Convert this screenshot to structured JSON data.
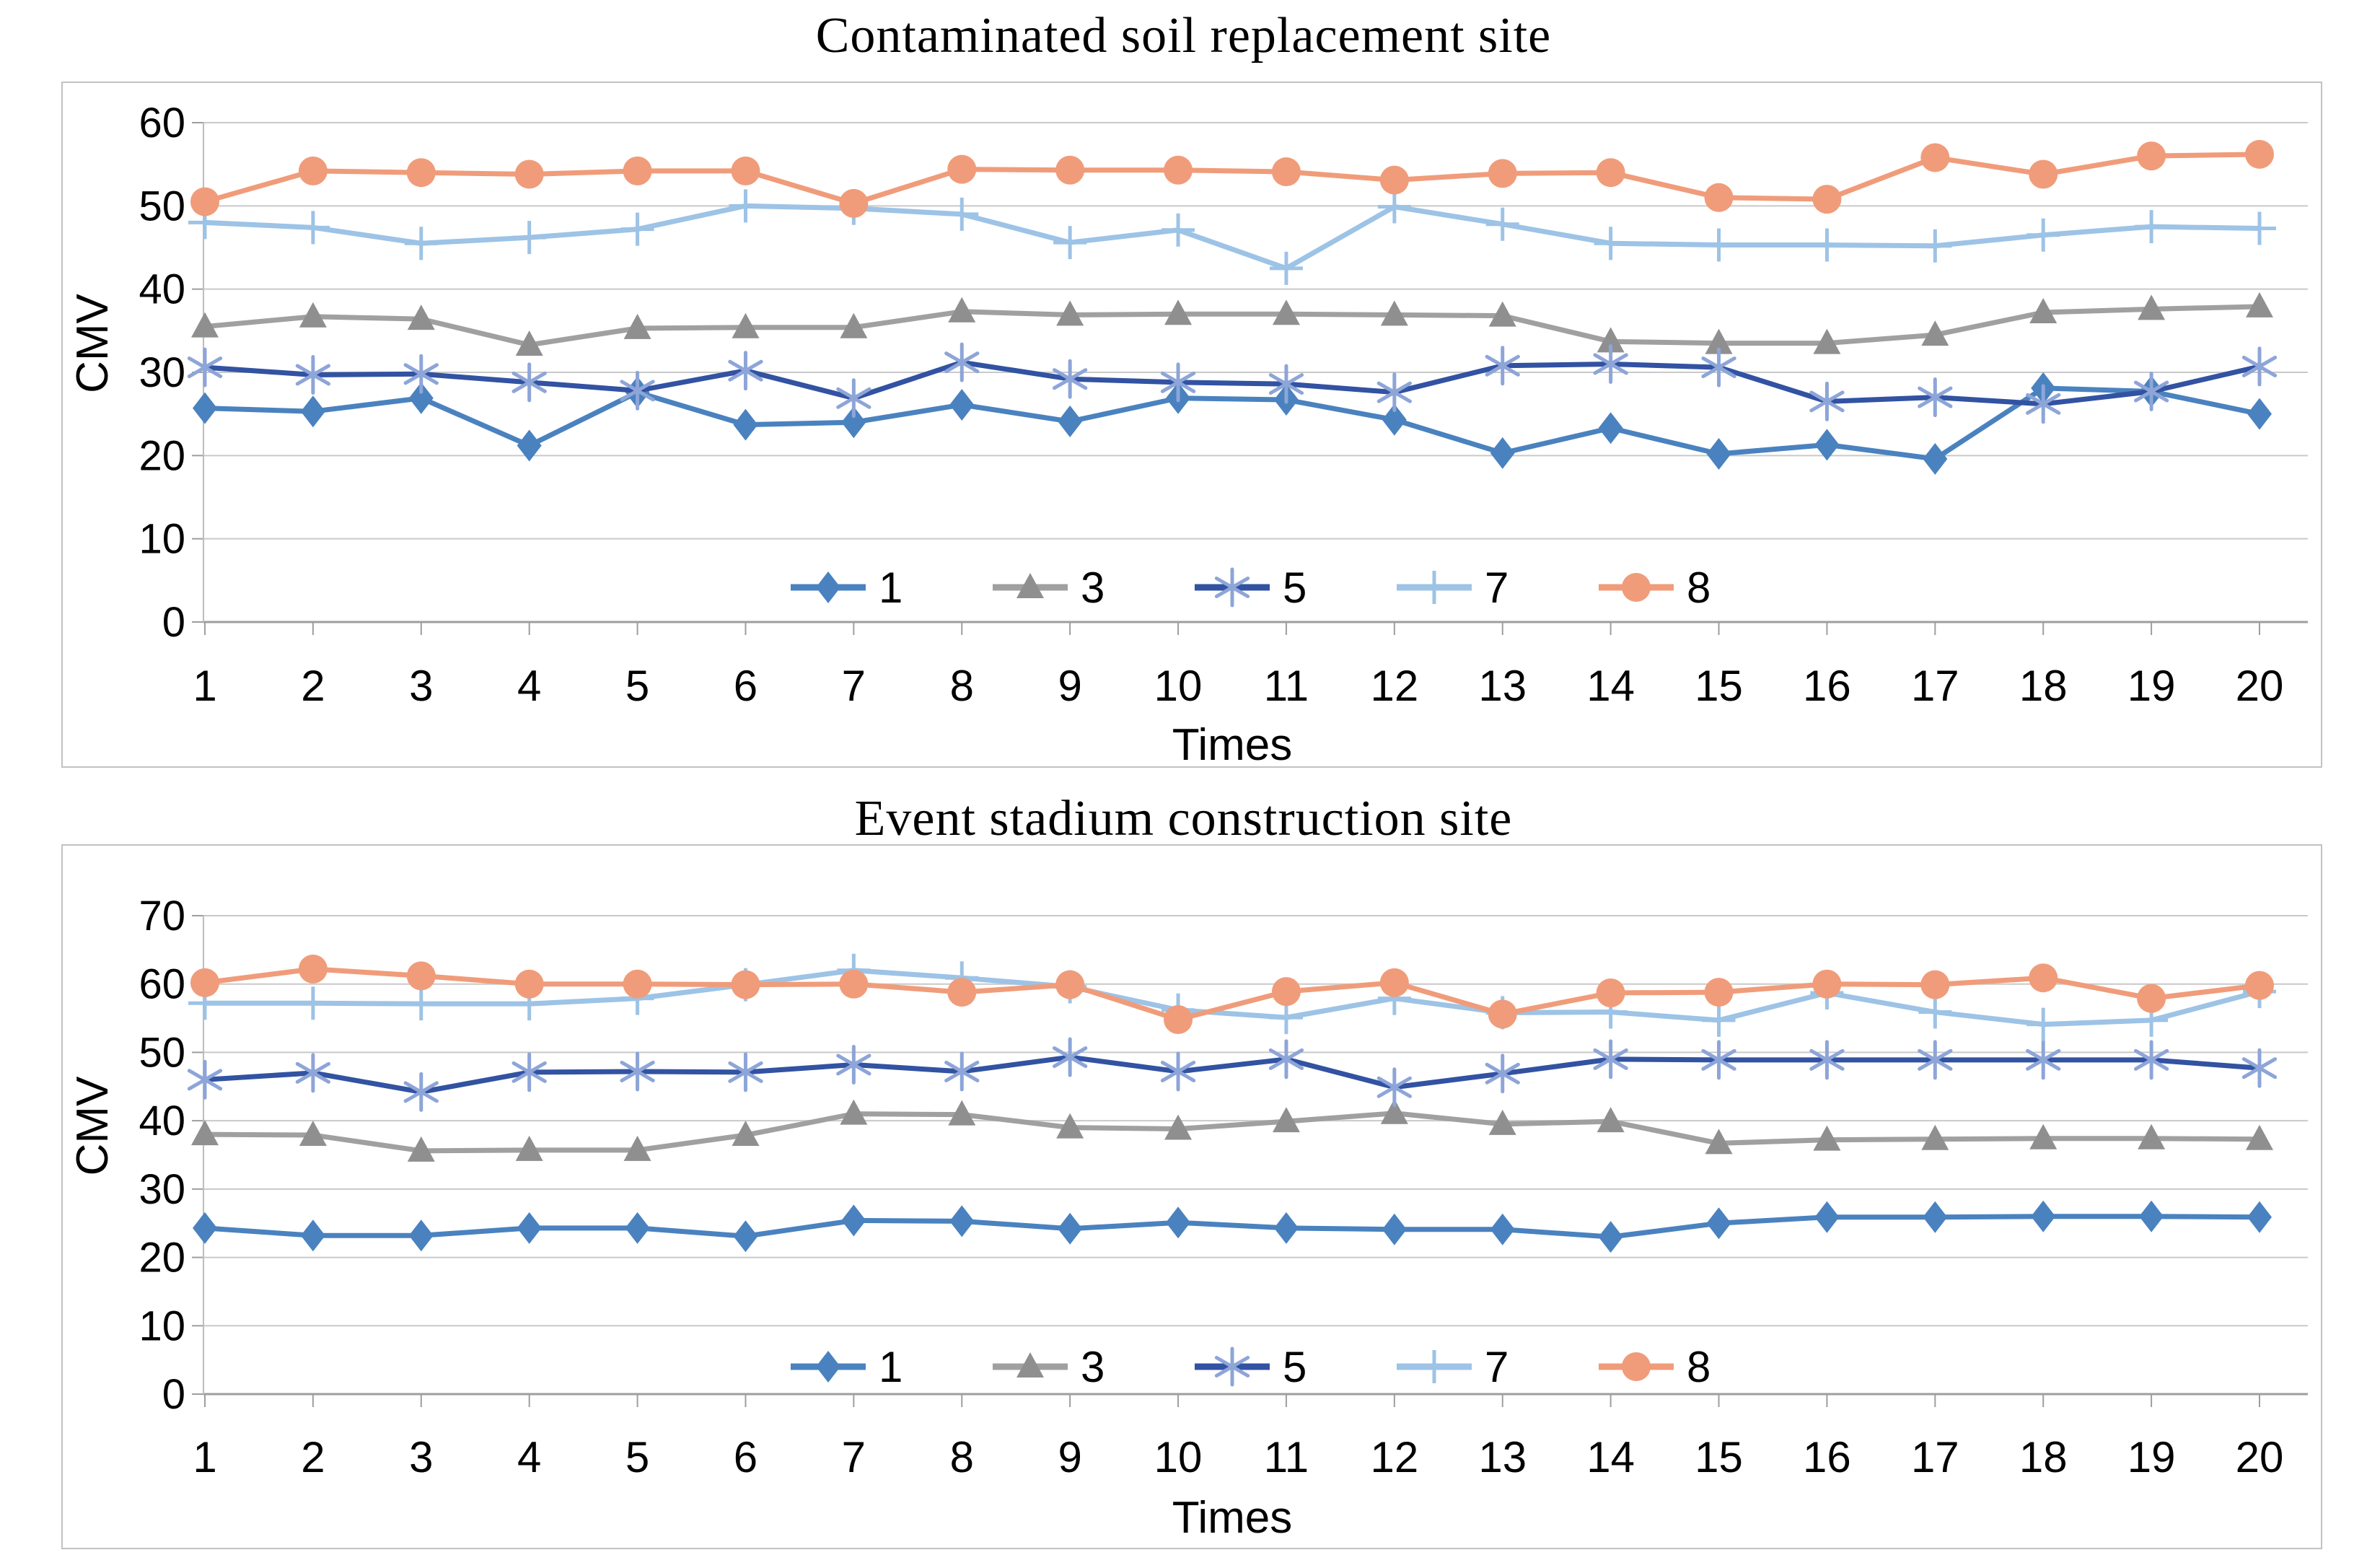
{
  "page": {
    "background": "#ffffff",
    "grid_color": "#c9c9c9",
    "axis_color": "#9e9e9e",
    "text_color": "#000000"
  },
  "chart_data": [
    {
      "type": "line",
      "title": "Contaminated soil replacement site",
      "xlabel": "Times",
      "ylabel": "CMV",
      "x": [
        1,
        2,
        3,
        4,
        5,
        6,
        7,
        8,
        9,
        10,
        11,
        12,
        13,
        14,
        15,
        16,
        17,
        18,
        19,
        20
      ],
      "ylim": [
        0,
        60
      ],
      "ytick_step": 10,
      "grid": true,
      "legend_position": "bottom-inside",
      "series": [
        {
          "name": "1",
          "marker": "diamond",
          "color": "#4a82bf",
          "marker_color": "#4a82bf",
          "values": [
            25.7,
            25.3,
            26.9,
            21.2,
            27.6,
            23.7,
            24.0,
            26.1,
            24.1,
            26.9,
            26.7,
            24.3,
            20.3,
            23.3,
            20.2,
            21.3,
            19.6,
            28.1,
            27.7,
            25.0
          ]
        },
        {
          "name": "3",
          "marker": "triangle",
          "color": "#a0a0a0",
          "marker_color": "#8f8f8f",
          "values": [
            35.5,
            36.7,
            36.4,
            33.3,
            35.3,
            35.4,
            35.4,
            37.3,
            36.9,
            37.0,
            37.0,
            36.9,
            36.8,
            33.7,
            33.5,
            33.5,
            34.5,
            37.2,
            37.6,
            37.9
          ]
        },
        {
          "name": "5",
          "marker": "asterisk",
          "color": "#3252a2",
          "marker_color": "#8da5d8",
          "values": [
            30.6,
            29.7,
            29.8,
            28.8,
            27.8,
            30.2,
            26.9,
            31.2,
            29.2,
            28.8,
            28.6,
            27.6,
            30.8,
            31.0,
            30.6,
            26.5,
            27.0,
            26.2,
            27.7,
            30.7
          ]
        },
        {
          "name": "7",
          "marker": "plus",
          "color": "#9dc3e6",
          "marker_color": "#9dc3e6",
          "values": [
            48.0,
            47.4,
            45.5,
            46.2,
            47.2,
            50.0,
            49.7,
            49.0,
            45.6,
            47.1,
            42.5,
            49.9,
            47.8,
            45.5,
            45.3,
            45.3,
            45.2,
            46.5,
            47.5,
            47.3
          ]
        },
        {
          "name": "8",
          "marker": "circle",
          "color": "#f09c7a",
          "marker_color": "#f09c7a",
          "values": [
            50.5,
            54.2,
            54.0,
            53.8,
            54.2,
            54.2,
            50.3,
            54.4,
            54.3,
            54.3,
            54.1,
            53.1,
            53.9,
            54.0,
            51.0,
            50.8,
            55.8,
            53.8,
            56.0,
            56.2
          ]
        }
      ]
    },
    {
      "type": "line",
      "title": "Event stadium construction site",
      "xlabel": "Times",
      "ylabel": "CMV",
      "x": [
        1,
        2,
        3,
        4,
        5,
        6,
        7,
        8,
        9,
        10,
        11,
        12,
        13,
        14,
        15,
        16,
        17,
        18,
        19,
        20
      ],
      "ylim": [
        0,
        70
      ],
      "ytick_step": 10,
      "grid": true,
      "legend_position": "bottom-inside",
      "series": [
        {
          "name": "1",
          "marker": "diamond",
          "color": "#4a82bf",
          "marker_color": "#4a82bf",
          "values": [
            24.3,
            23.2,
            23.2,
            24.3,
            24.3,
            23.1,
            25.4,
            25.3,
            24.2,
            25.1,
            24.3,
            24.1,
            24.1,
            23.0,
            25.0,
            25.9,
            25.9,
            26.0,
            26.0,
            25.9
          ]
        },
        {
          "name": "3",
          "marker": "triangle",
          "color": "#a0a0a0",
          "marker_color": "#8f8f8f",
          "values": [
            38.0,
            37.9,
            35.6,
            35.7,
            35.7,
            37.9,
            41.0,
            40.9,
            39.0,
            38.8,
            39.9,
            41.1,
            39.5,
            39.9,
            36.7,
            37.2,
            37.3,
            37.4,
            37.4,
            37.3
          ]
        },
        {
          "name": "5",
          "marker": "asterisk",
          "color": "#3252a2",
          "marker_color": "#8da5d8",
          "values": [
            46.0,
            47.0,
            44.2,
            47.1,
            47.2,
            47.1,
            48.2,
            47.2,
            49.3,
            47.2,
            49.0,
            44.9,
            46.9,
            49.0,
            48.9,
            48.9,
            48.9,
            48.9,
            48.9,
            47.7
          ]
        },
        {
          "name": "7",
          "marker": "plus",
          "color": "#9dc3e6",
          "marker_color": "#9dc3e6",
          "values": [
            57.2,
            57.2,
            57.1,
            57.1,
            57.9,
            59.9,
            62.0,
            60.9,
            59.6,
            56.2,
            55.1,
            57.9,
            55.8,
            55.9,
            54.7,
            58.7,
            55.9,
            54.1,
            54.7,
            58.9
          ]
        },
        {
          "name": "8",
          "marker": "circle",
          "color": "#f09c7a",
          "marker_color": "#f09c7a",
          "values": [
            60.2,
            62.2,
            61.2,
            60.0,
            60.0,
            59.9,
            60.0,
            58.8,
            59.9,
            54.8,
            58.9,
            60.2,
            55.6,
            58.7,
            58.8,
            60.0,
            59.9,
            60.9,
            57.9,
            59.8
          ]
        }
      ]
    }
  ]
}
